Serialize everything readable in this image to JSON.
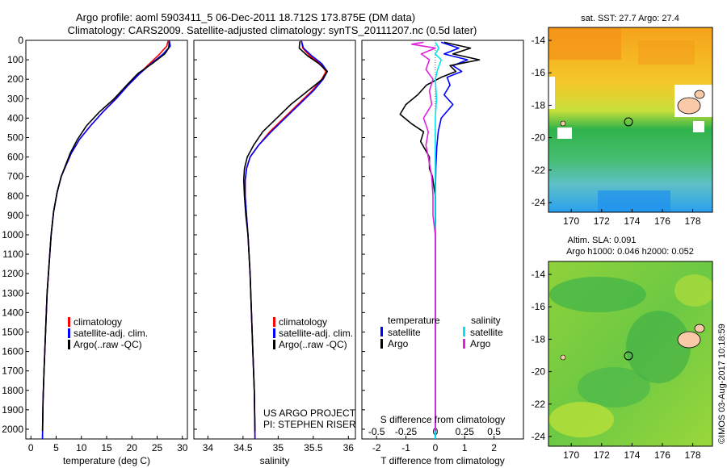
{
  "header": {
    "title_line1": "Argo profile: aoml 5903411_5 06-Dec-2011 18.712S 173.875E (DM data)",
    "title_line2": "Climatology: CARS2009. Satellite-adjusted climatology: synTS_20111207.nc (0.5d later)"
  },
  "colors": {
    "climatology": "#ff0000",
    "satellite": "#0000ff",
    "argo": "#000000",
    "salinity_satellite": "#00e5ee",
    "salinity_argo": "#e020e0"
  },
  "icons": {
    "legend_mark": "legend-swatch-icon",
    "float_marker": "circle-marker-icon"
  },
  "credits": {
    "project": "US ARGO PROJECT",
    "pi": "PI: STEPHEN RISER",
    "imos": "©IMOS 03-Aug-2017 10:18:59"
  },
  "chart_data": [
    {
      "type": "line",
      "panel": "temperature",
      "xlabel": "temperature (deg C)",
      "xlim": [
        -1,
        31
      ],
      "xticks": [
        0,
        5,
        10,
        15,
        20,
        25,
        30
      ],
      "ylim": [
        2050,
        0
      ],
      "yticks": [
        0,
        100,
        200,
        300,
        400,
        500,
        600,
        700,
        800,
        900,
        1000,
        1100,
        1200,
        1300,
        1400,
        1500,
        1600,
        1700,
        1800,
        1900,
        2000
      ],
      "legend": [
        "climatology",
        "satellite-adj. clim.",
        "Argo(..raw -QC)"
      ],
      "legend_position": "lower-left",
      "series": [
        {
          "name": "climatology",
          "color": "#ff0000",
          "points": [
            [
              27.2,
              0
            ],
            [
              26.9,
              30
            ],
            [
              25.5,
              70
            ],
            [
              23.5,
              120
            ],
            [
              21.5,
              170
            ],
            [
              19.2,
              230
            ],
            [
              16.8,
              300
            ],
            [
              14.2,
              370
            ],
            [
              11.8,
              440
            ],
            [
              9.6,
              510
            ],
            [
              8.0,
              580
            ],
            [
              7.0,
              640
            ],
            [
              6.0,
              700
            ],
            [
              5.2,
              780
            ],
            [
              4.5,
              880
            ],
            [
              4.0,
              1000
            ],
            [
              3.6,
              1150
            ],
            [
              3.2,
              1300
            ],
            [
              2.9,
              1500
            ],
            [
              2.6,
              1700
            ],
            [
              2.4,
              1850
            ],
            [
              2.3,
              2050
            ]
          ]
        },
        {
          "name": "satellite-adj. clim.",
          "color": "#0000ff",
          "points": [
            [
              27.4,
              0
            ],
            [
              27.6,
              30
            ],
            [
              26.2,
              70
            ],
            [
              23.8,
              120
            ],
            [
              21.6,
              170
            ],
            [
              19.3,
              230
            ],
            [
              16.9,
              300
            ],
            [
              14.2,
              370
            ],
            [
              11.8,
              440
            ],
            [
              9.6,
              510
            ],
            [
              8.0,
              580
            ],
            [
              7.0,
              640
            ],
            [
              6.0,
              700
            ],
            [
              5.2,
              780
            ],
            [
              4.5,
              880
            ],
            [
              4.0,
              1000
            ],
            [
              3.6,
              1150
            ],
            [
              3.2,
              1300
            ],
            [
              2.9,
              1500
            ],
            [
              2.6,
              1700
            ],
            [
              2.4,
              1850
            ],
            [
              2.3,
              2050
            ]
          ]
        },
        {
          "name": "Argo(..raw -QC)",
          "color": "#000000",
          "points": [
            [
              27.4,
              5
            ],
            [
              27.3,
              40
            ],
            [
              26.5,
              70
            ],
            [
              24.0,
              120
            ],
            [
              21.2,
              170
            ],
            [
              19.0,
              230
            ],
            [
              16.5,
              300
            ],
            [
              13.5,
              370
            ],
            [
              11.0,
              440
            ],
            [
              9.2,
              510
            ],
            [
              7.8,
              580
            ],
            [
              6.9,
              640
            ],
            [
              6.0,
              700
            ],
            [
              5.2,
              780
            ],
            [
              4.5,
              880
            ],
            [
              4.0,
              1000
            ],
            [
              3.6,
              1150
            ],
            [
              3.2,
              1300
            ],
            [
              2.9,
              1500
            ],
            [
              2.6,
              1700
            ],
            [
              2.4,
              1850
            ],
            [
              2.3,
              2010
            ]
          ]
        }
      ]
    },
    {
      "type": "line",
      "panel": "salinity",
      "xlabel": "salinity",
      "xlim": [
        33.8,
        36.1
      ],
      "xticks": [
        34,
        34.5,
        35,
        35.5,
        36
      ],
      "ylim": [
        2050,
        0
      ],
      "legend": [
        "climatology",
        "satellite-adj. clim.",
        "Argo(..raw -QC)"
      ],
      "legend_position": "lower-left",
      "series": [
        {
          "name": "climatology",
          "color": "#ff0000",
          "points": [
            [
              35.33,
              0
            ],
            [
              35.35,
              40
            ],
            [
              35.45,
              80
            ],
            [
              35.6,
              120
            ],
            [
              35.68,
              160
            ],
            [
              35.62,
              200
            ],
            [
              35.48,
              260
            ],
            [
              35.28,
              330
            ],
            [
              35.08,
              400
            ],
            [
              34.88,
              470
            ],
            [
              34.72,
              540
            ],
            [
              34.6,
              600
            ],
            [
              34.55,
              660
            ],
            [
              34.53,
              720
            ],
            [
              34.53,
              800
            ],
            [
              34.55,
              900
            ],
            [
              34.57,
              1000
            ],
            [
              34.6,
              1200
            ],
            [
              34.62,
              1400
            ],
            [
              34.64,
              1600
            ],
            [
              34.66,
              1800
            ],
            [
              34.67,
              2050
            ]
          ]
        },
        {
          "name": "satellite-adj. clim.",
          "color": "#0000ff",
          "points": [
            [
              35.33,
              0
            ],
            [
              35.36,
              40
            ],
            [
              35.48,
              80
            ],
            [
              35.62,
              120
            ],
            [
              35.7,
              160
            ],
            [
              35.64,
              200
            ],
            [
              35.5,
              260
            ],
            [
              35.3,
              330
            ],
            [
              35.1,
              400
            ],
            [
              34.9,
              470
            ],
            [
              34.72,
              540
            ],
            [
              34.6,
              600
            ],
            [
              34.55,
              660
            ],
            [
              34.53,
              720
            ],
            [
              34.53,
              800
            ],
            [
              34.55,
              900
            ],
            [
              34.57,
              1000
            ],
            [
              34.6,
              1200
            ],
            [
              34.62,
              1400
            ],
            [
              34.64,
              1600
            ],
            [
              34.66,
              1800
            ],
            [
              34.67,
              2050
            ]
          ]
        },
        {
          "name": "Argo(..raw -QC)",
          "color": "#000000",
          "points": [
            [
              35.31,
              5
            ],
            [
              35.3,
              40
            ],
            [
              35.42,
              80
            ],
            [
              35.58,
              120
            ],
            [
              35.7,
              160
            ],
            [
              35.63,
              200
            ],
            [
              35.42,
              260
            ],
            [
              35.18,
              330
            ],
            [
              34.98,
              400
            ],
            [
              34.78,
              470
            ],
            [
              34.65,
              540
            ],
            [
              34.56,
              600
            ],
            [
              34.52,
              660
            ],
            [
              34.51,
              720
            ],
            [
              34.52,
              800
            ],
            [
              34.54,
              900
            ],
            [
              34.57,
              1000
            ],
            [
              34.6,
              1200
            ],
            [
              34.62,
              1400
            ],
            [
              34.64,
              1600
            ],
            [
              34.66,
              1800
            ],
            [
              34.67,
              2010
            ]
          ]
        }
      ]
    },
    {
      "type": "line",
      "panel": "difference",
      "xlabel": "T difference from climatology",
      "xlabel_top": "S difference from climatology",
      "xlim": [
        -2.5,
        3.0
      ],
      "xticks": [
        -2,
        -1,
        0,
        1,
        2
      ],
      "xticks_top": [
        -0.5,
        -0.25,
        0,
        0.25,
        0.5
      ],
      "xlim_top": [
        -0.625,
        0.75
      ],
      "ylim": [
        2050,
        0
      ],
      "legend_temperature": [
        "temperature",
        "satellite",
        "Argo"
      ],
      "legend_salinity": [
        "salinity",
        "satellite",
        "Argo"
      ],
      "series": [
        {
          "name": "satellite",
          "group": "temperature",
          "color": "#0000ff",
          "points": [
            [
              0.2,
              10
            ],
            [
              0.8,
              40
            ],
            [
              0.3,
              70
            ],
            [
              1.1,
              100
            ],
            [
              0.6,
              130
            ],
            [
              0.9,
              160
            ],
            [
              0.4,
              190
            ],
            [
              0.5,
              230
            ],
            [
              0.3,
              280
            ],
            [
              0.6,
              330
            ],
            [
              0.2,
              400
            ],
            [
              0.1,
              470
            ],
            [
              0.05,
              550
            ],
            [
              0.02,
              650
            ],
            [
              0.0,
              800
            ],
            [
              0.0,
              1000
            ],
            [
              0.0,
              1500
            ],
            [
              0.0,
              2050
            ]
          ]
        },
        {
          "name": "Argo",
          "group": "temperature",
          "color": "#000000",
          "points": [
            [
              0.3,
              10
            ],
            [
              1.2,
              40
            ],
            [
              0.6,
              70
            ],
            [
              1.5,
              100
            ],
            [
              0.5,
              130
            ],
            [
              0.7,
              160
            ],
            [
              0.2,
              190
            ],
            [
              -0.3,
              230
            ],
            [
              -0.6,
              280
            ],
            [
              -1.0,
              330
            ],
            [
              -1.2,
              380
            ],
            [
              -0.8,
              430
            ],
            [
              -0.4,
              470
            ],
            [
              -0.5,
              520
            ],
            [
              -0.2,
              600
            ],
            [
              -0.2,
              660
            ],
            [
              -0.1,
              700
            ],
            [
              0.0,
              800
            ],
            [
              0.0,
              1000
            ],
            [
              0.0,
              1500
            ],
            [
              0.0,
              2010
            ]
          ]
        },
        {
          "name": "satellite",
          "group": "salinity",
          "color": "#00e5ee",
          "points": [
            [
              0.0,
              10
            ],
            [
              0.03,
              40
            ],
            [
              0.0,
              70
            ],
            [
              0.05,
              100
            ],
            [
              0.02,
              150
            ],
            [
              0.0,
              200
            ],
            [
              0.01,
              300
            ],
            [
              0.0,
              400
            ],
            [
              0.0,
              600
            ],
            [
              0.0,
              900
            ],
            [
              0.0,
              1200
            ],
            [
              0.0,
              2050
            ]
          ]
        },
        {
          "name": "Argo",
          "group": "salinity",
          "color": "#e020e0",
          "points": [
            [
              -0.1,
              10
            ],
            [
              -0.2,
              20
            ],
            [
              0.0,
              40
            ],
            [
              -0.12,
              70
            ],
            [
              -0.05,
              100
            ],
            [
              -0.08,
              150
            ],
            [
              -0.02,
              200
            ],
            [
              -0.05,
              260
            ],
            [
              -0.03,
              330
            ],
            [
              -0.1,
              400
            ],
            [
              -0.06,
              470
            ],
            [
              -0.08,
              540
            ],
            [
              -0.06,
              600
            ],
            [
              -0.03,
              700
            ],
            [
              -0.02,
              800
            ],
            [
              -0.02,
              900
            ],
            [
              0.0,
              1000
            ],
            [
              0.0,
              2010
            ]
          ]
        }
      ]
    },
    {
      "type": "heatmap",
      "panel": "sst_map",
      "title": "sat. SST: 27.7  Argo: 27.4",
      "xlim": [
        168.5,
        179.3
      ],
      "ylim": [
        -24.6,
        -13.2
      ],
      "xticks": [
        170,
        172,
        174,
        176,
        178
      ],
      "yticks": [
        -14,
        -16,
        -18,
        -20,
        -22,
        -24
      ],
      "marker": [
        173.875,
        -18.712
      ]
    },
    {
      "type": "heatmap",
      "panel": "sla_map",
      "title_line1": "Altim. SLA: 0.091",
      "title_line2": "Argo h1000: 0.046 h2000: 0.052",
      "xlim": [
        168.5,
        179.3
      ],
      "ylim": [
        -24.6,
        -13.2
      ],
      "xticks": [
        170,
        172,
        174,
        176,
        178
      ],
      "yticks": [
        -14,
        -16,
        -18,
        -20,
        -22,
        -24
      ],
      "marker": [
        173.875,
        -18.712
      ]
    }
  ]
}
